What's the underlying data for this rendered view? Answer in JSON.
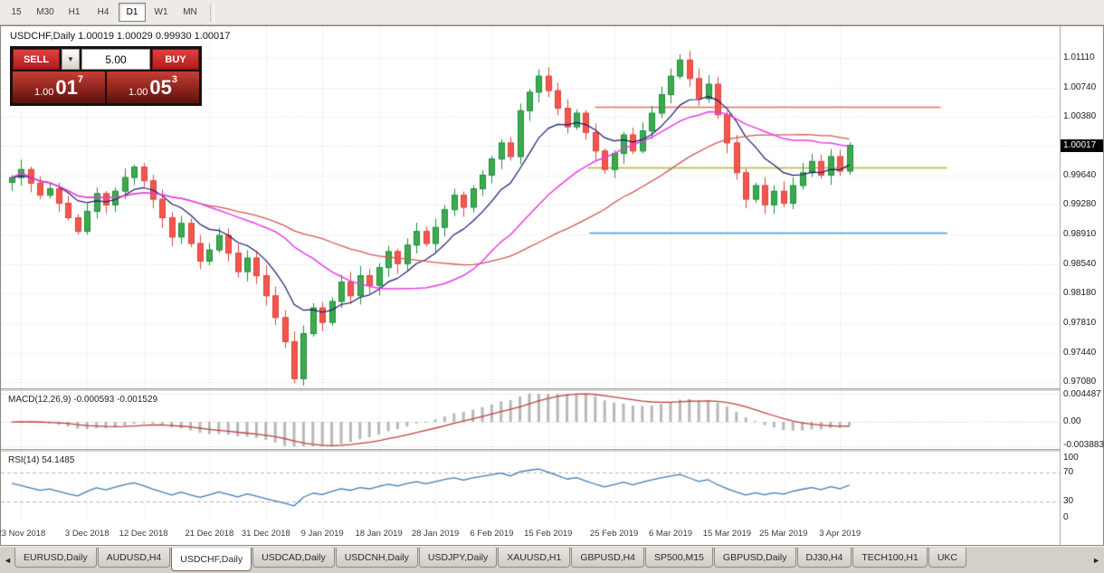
{
  "toolbar": {
    "timeframes": [
      {
        "label": "15",
        "active": false
      },
      {
        "label": "M30",
        "active": false
      },
      {
        "label": "H1",
        "active": false
      },
      {
        "label": "H4",
        "active": false
      },
      {
        "label": "D1",
        "active": true
      },
      {
        "label": "W1",
        "active": false
      },
      {
        "label": "MN",
        "active": false
      }
    ]
  },
  "chart": {
    "symbol_label": "USDCHF,Daily",
    "ohlc_label": "1.00019 1.00029 0.99930 1.00017"
  },
  "trade_panel": {
    "sell_label": "SELL",
    "buy_label": "BUY",
    "volume": "5.00",
    "sell_price": {
      "big": "1.00",
      "pips": "01",
      "frac": "7"
    },
    "buy_price": {
      "big": "1.00",
      "pips": "05",
      "frac": "3"
    }
  },
  "indicators": {
    "macd": {
      "name": "MACD(12,26,9)",
      "value_main": "-0.000593",
      "value_signal": "-0.001529"
    },
    "rsi": {
      "name": "RSI(14)",
      "value": "54.1485"
    }
  },
  "tab_bar": {
    "tabs": [
      {
        "label": "EURUSD,Daily",
        "active": false
      },
      {
        "label": "AUDUSD,H4",
        "active": false
      },
      {
        "label": "USDCHF,Daily",
        "active": true
      },
      {
        "label": "USDCAD,Daily",
        "active": false
      },
      {
        "label": "USDCNH,Daily",
        "active": false
      },
      {
        "label": "USDJPY,Daily",
        "active": false
      },
      {
        "label": "XAUUSD,H1",
        "active": false
      },
      {
        "label": "GBPUSD,H4",
        "active": false
      },
      {
        "label": "SP500,M15",
        "active": false
      },
      {
        "label": "GBPUSD,Daily",
        "active": false
      },
      {
        "label": "DJ30,H4",
        "active": false
      },
      {
        "label": "TECH100,H1",
        "active": false
      },
      {
        "label": "UKC",
        "active": false
      }
    ]
  },
  "colors": {
    "up": "#3daa4e",
    "up_border": "#1e8f3a",
    "down": "#f4564e",
    "down_border": "#d8473c",
    "ma_fast": "#191970",
    "ma_mid": "#d05a52",
    "ma_slow": "#e83ce8",
    "macd_hist": "#b8b8b8",
    "macd_signal": "#c04040",
    "rsi": "#417db8",
    "grid": "#dedede",
    "level_dash": "#b6b6b6"
  },
  "chart_data": {
    "type": "candlestick",
    "symbol": "USDCHF",
    "timeframe": "Daily",
    "ohlc_current": {
      "open": 1.00019,
      "high": 1.00029,
      "low": 0.9993,
      "close": 1.00017
    },
    "closes": [
      0.9962,
      0.9972,
      0.9955,
      0.994,
      0.9948,
      0.993,
      0.9912,
      0.9895,
      0.992,
      0.9942,
      0.9928,
      0.9945,
      0.9962,
      0.9975,
      0.9958,
      0.9935,
      0.9912,
      0.9888,
      0.9905,
      0.988,
      0.9858,
      0.9872,
      0.989,
      0.9868,
      0.9845,
      0.9862,
      0.984,
      0.9815,
      0.9788,
      0.9758,
      0.9712,
      0.9768,
      0.98,
      0.9782,
      0.9808,
      0.9832,
      0.9815,
      0.984,
      0.9828,
      0.985,
      0.987,
      0.9855,
      0.9878,
      0.9895,
      0.988,
      0.99,
      0.9922,
      0.994,
      0.9925,
      0.9948,
      0.9965,
      0.9985,
      1.0005,
      0.9988,
      1.0045,
      1.0068,
      1.0088,
      1.007,
      1.0048,
      1.0025,
      1.0042,
      1.0018,
      0.9995,
      0.9972,
      0.9992,
      1.0015,
      0.9995,
      1.002,
      1.0042,
      1.0065,
      1.0088,
      1.0108,
      1.0085,
      1.006,
      1.0078,
      1.004,
      1.0005,
      0.9968,
      0.9935,
      0.9952,
      0.9928,
      0.9945,
      0.993,
      0.9952,
      0.9968,
      0.9982,
      0.9965,
      0.9988,
      0.997,
      1.0002
    ],
    "overrides": {
      "crash_index": 30,
      "crash_low": 0.9706,
      "spike_index": 71,
      "spike_high": 1.0115
    },
    "price_range": {
      "top": 1.015,
      "bottom": 0.97
    },
    "price_axis_values": [
      1.0111,
      1.0074,
      1.0038,
      1.0001,
      0.9964,
      0.9928,
      0.9891,
      0.9854,
      0.9818,
      0.9781,
      0.9744,
      0.9708
    ],
    "price_axis_labels": [
      "1.01110",
      "1.00740",
      "1.00380",
      "1.00010",
      "0.99640",
      "0.99280",
      "0.98910",
      "0.98540",
      "0.98180",
      "0.97810",
      "0.97440",
      "0.97080"
    ],
    "current_price": 1.00017,
    "current_price_label": "1.00017",
    "date_labels": [
      "23 Nov 2018",
      "3 Dec 2018",
      "12 Dec 2018",
      "21 Dec 2018",
      "31 Dec 2018",
      "9 Jan 2019",
      "18 Jan 2019",
      "28 Jan 2019",
      "6 Feb 2019",
      "15 Feb 2019",
      "25 Feb 2019",
      "6 Mar 2019",
      "15 Mar 2019",
      "25 Mar 2019",
      "3 Apr 2019"
    ],
    "date_label_indices": [
      1,
      8,
      14,
      21,
      27,
      33,
      39,
      45,
      51,
      57,
      64,
      70,
      76,
      82,
      88
    ],
    "hlines": [
      {
        "price": 1.005,
        "color": "#f2695c",
        "from": 62.0,
        "to": 98.7
      },
      {
        "price": 0.9975,
        "color": "#b4b434",
        "from": 61.2,
        "to": 99.4
      },
      {
        "price": 0.9893,
        "color": "#4e94cc",
        "from": 61.4,
        "to": 99.4
      }
    ],
    "moving_averages": [
      {
        "name": "fast",
        "method": "ema",
        "period": 9,
        "color_key": "ma_fast"
      },
      {
        "name": "mid",
        "method": "sma",
        "period": 34,
        "color_key": "ma_mid"
      },
      {
        "name": "slow",
        "method": "sma",
        "period": 21,
        "color_key": "ma_slow"
      }
    ],
    "macd": {
      "fast": 12,
      "slow": 26,
      "signal": 9,
      "scale_max": 0.004487,
      "scale_min": -0.003883,
      "scale_max_label": "0.004487",
      "scale_zero_label": "0.00",
      "scale_min_label": "-0.003883"
    },
    "rsi": {
      "period": 14,
      "last_value": 54.1485,
      "levels": [
        100,
        70,
        30,
        0
      ],
      "level_labels": [
        "100",
        "70",
        "30",
        "0"
      ],
      "dashed_levels": [
        70,
        30
      ]
    }
  }
}
